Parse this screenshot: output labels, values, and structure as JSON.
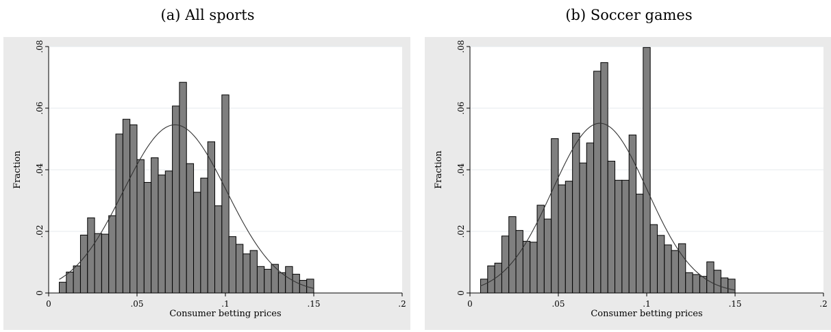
{
  "panels": [
    {
      "title": "(a) All sports"
    },
    {
      "title": "(b) Soccer games"
    }
  ],
  "chart_data": [
    {
      "type": "bar",
      "title": "(a) All sports",
      "xlabel": "Consumer betting prices",
      "ylabel": "Fraction",
      "xlim": [
        0,
        0.2
      ],
      "ylim": [
        0,
        0.08
      ],
      "xticks": [
        "0",
        ".05",
        ".1",
        ".15",
        ".2"
      ],
      "yticks": [
        "0",
        ".02",
        ".04",
        ".06",
        ".08"
      ],
      "bin_width": 0.004,
      "bin_start": 0.006,
      "values": [
        0.0035,
        0.0068,
        0.0088,
        0.0188,
        0.0244,
        0.0193,
        0.0191,
        0.0251,
        0.0516,
        0.0564,
        0.0546,
        0.0433,
        0.0359,
        0.0439,
        0.0383,
        0.0396,
        0.0607,
        0.0684,
        0.042,
        0.0327,
        0.0373,
        0.0491,
        0.0283,
        0.0643,
        0.0183,
        0.0158,
        0.0127,
        0.0138,
        0.0086,
        0.0077,
        0.0093,
        0.0066,
        0.0086,
        0.0061,
        0.0041,
        0.0045
      ],
      "normal_curve": {
        "mean": 0.0715,
        "sd": 0.0292,
        "peak": 0.0546
      },
      "grid": true,
      "bar_color": "#7f7f7f",
      "plot_bg": "#ffffff",
      "outer_bg": "#eaeaea"
    },
    {
      "type": "bar",
      "title": "(b) Soccer games",
      "xlabel": "Consumer betting prices",
      "ylabel": "Fraction",
      "xlim": [
        0,
        0.2
      ],
      "ylim": [
        0,
        0.08
      ],
      "xticks": [
        "0",
        ".05",
        ".1",
        ".15",
        ".2"
      ],
      "yticks": [
        "0",
        ".02",
        ".04",
        ".06",
        ".08"
      ],
      "bin_width": 0.004,
      "bin_start": 0.006,
      "values": [
        0.0045,
        0.0088,
        0.0097,
        0.0185,
        0.0248,
        0.0203,
        0.0168,
        0.0165,
        0.0285,
        0.024,
        0.0501,
        0.0351,
        0.0363,
        0.0519,
        0.0422,
        0.0487,
        0.072,
        0.0748,
        0.0428,
        0.0366,
        0.0366,
        0.0513,
        0.0321,
        0.0797,
        0.0222,
        0.0187,
        0.0156,
        0.0138,
        0.016,
        0.0066,
        0.006,
        0.0054,
        0.0101,
        0.0074,
        0.0049,
        0.0045
      ],
      "normal_curve": {
        "mean": 0.0735,
        "sd": 0.0268,
        "peak": 0.0551
      },
      "grid": true,
      "bar_color": "#7f7f7f",
      "plot_bg": "#ffffff",
      "outer_bg": "#eaeaea"
    }
  ]
}
